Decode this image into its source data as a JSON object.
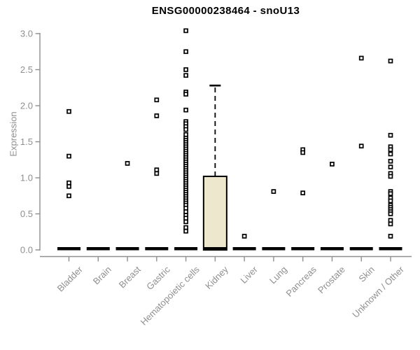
{
  "chart_data": {
    "type": "boxplot",
    "title": "ENSG00000238464 - snoU13",
    "ylabel": "Expression",
    "xlabel": "",
    "ylim": [
      0,
      3.05
    ],
    "yticks": [
      "0.0",
      "0.5",
      "1.0",
      "1.5",
      "2.0",
      "2.5",
      "3.0"
    ],
    "ytick_values": [
      0.0,
      0.5,
      1.0,
      1.5,
      2.0,
      2.5,
      3.0
    ],
    "grid": "off",
    "legend": "none",
    "categories": [
      "Bladder",
      "Brain",
      "Breast",
      "Gastric",
      "Hematopoietic cells",
      "Kidney",
      "Liver",
      "Lung",
      "Pancreas",
      "Prostate",
      "Skin",
      "Unknown / Other"
    ],
    "boxes": [
      {
        "category": "Bladder",
        "q1": 0,
        "median": 0,
        "q3": 0,
        "whisker_low": 0,
        "whisker_high": 0,
        "outliers": [
          1.92,
          1.3,
          0.93,
          0.88,
          0.75
        ]
      },
      {
        "category": "Brain",
        "q1": 0,
        "median": 0,
        "q3": 0,
        "whisker_low": 0,
        "whisker_high": 0,
        "outliers": []
      },
      {
        "category": "Breast",
        "q1": 0,
        "median": 0,
        "q3": 0,
        "whisker_low": 0,
        "whisker_high": 0,
        "outliers": [
          1.2
        ]
      },
      {
        "category": "Gastric",
        "q1": 0,
        "median": 0,
        "q3": 0,
        "whisker_low": 0,
        "whisker_high": 0,
        "outliers": [
          2.08,
          1.86,
          1.11,
          1.06
        ]
      },
      {
        "category": "Hematopoietic cells",
        "q1": 0,
        "median": 0,
        "q3": 0,
        "whisker_low": 0,
        "whisker_high": 0,
        "outliers": [
          3.04,
          2.75,
          2.5,
          2.42,
          2.19,
          2.16,
          1.94,
          1.78,
          1.75,
          1.71,
          1.67,
          1.6,
          1.55,
          1.52,
          1.49,
          1.46,
          1.43,
          1.4,
          1.37,
          1.34,
          1.31,
          1.28,
          1.25,
          1.22,
          1.19,
          1.16,
          1.13,
          1.1,
          1.07,
          1.04,
          1.01,
          0.98,
          0.95,
          0.92,
          0.89,
          0.86,
          0.83,
          0.8,
          0.77,
          0.74,
          0.71,
          0.68,
          0.65,
          0.62,
          0.58,
          0.53,
          0.48,
          0.44,
          0.39,
          0.31,
          0.26
        ]
      },
      {
        "category": "Kidney",
        "q1": 0,
        "median": 0,
        "q3": 1.02,
        "whisker_low": 0,
        "whisker_high": 2.28,
        "outliers": []
      },
      {
        "category": "Liver",
        "q1": 0,
        "median": 0,
        "q3": 0,
        "whisker_low": 0,
        "whisker_high": 0,
        "outliers": [
          0.19
        ]
      },
      {
        "category": "Lung",
        "q1": 0,
        "median": 0,
        "q3": 0,
        "whisker_low": 0,
        "whisker_high": 0,
        "outliers": [
          0.81
        ]
      },
      {
        "category": "Pancreas",
        "q1": 0,
        "median": 0,
        "q3": 0,
        "whisker_low": 0,
        "whisker_high": 0,
        "outliers": [
          1.39,
          1.35,
          0.79
        ]
      },
      {
        "category": "Prostate",
        "q1": 0,
        "median": 0,
        "q3": 0,
        "whisker_low": 0,
        "whisker_high": 0,
        "outliers": [
          1.19
        ]
      },
      {
        "category": "Skin",
        "q1": 0,
        "median": 0,
        "q3": 0,
        "whisker_low": 0,
        "whisker_high": 0,
        "outliers": [
          2.66,
          1.44
        ]
      },
      {
        "category": "Unknown / Other",
        "q1": 0,
        "median": 0,
        "q3": 0,
        "whisker_low": 0,
        "whisker_high": 0,
        "outliers": [
          2.62,
          1.59,
          1.43,
          1.39,
          1.33,
          1.23,
          1.15,
          1.06,
          1.02,
          0.81,
          0.78,
          0.72,
          0.68,
          0.62,
          0.59,
          0.56,
          0.53,
          0.5,
          0.41,
          0.36,
          0.19
        ]
      }
    ],
    "colors": {
      "box_fill": "#ede8cd",
      "box_border": "#000000",
      "median_color": "#000000",
      "whisker_color": "#000000",
      "point_color": "#000000",
      "point_fill": "#ffffff",
      "axis_color": "#8f8f8f",
      "tick_text_color": "#8f8f8f",
      "title_color": "#000000",
      "background": "#ffffff"
    }
  }
}
